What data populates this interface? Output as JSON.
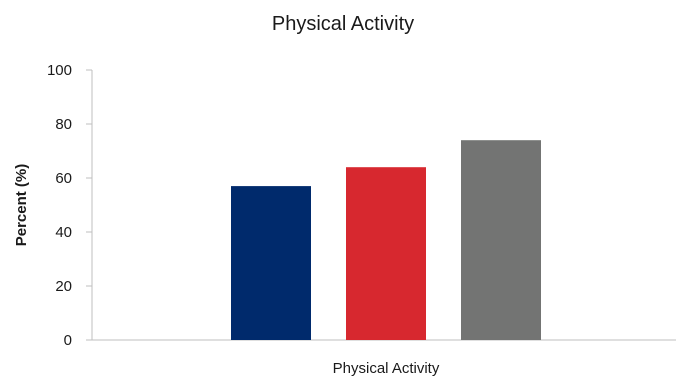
{
  "chart_data": {
    "type": "bar",
    "title": "Physical Activity",
    "xlabel": "",
    "ylabel": "Percent (%)",
    "categories": [
      "Physical Activity"
    ],
    "series": [
      {
        "values": [
          57
        ],
        "color": "#002a6c"
      },
      {
        "values": [
          64
        ],
        "color": "#d7282f"
      },
      {
        "values": [
          74
        ],
        "color": "#737473"
      }
    ],
    "ylim": [
      0,
      100
    ],
    "yticks": [
      0,
      20,
      40,
      60,
      80,
      100
    ],
    "grid": false,
    "legend": "none"
  }
}
